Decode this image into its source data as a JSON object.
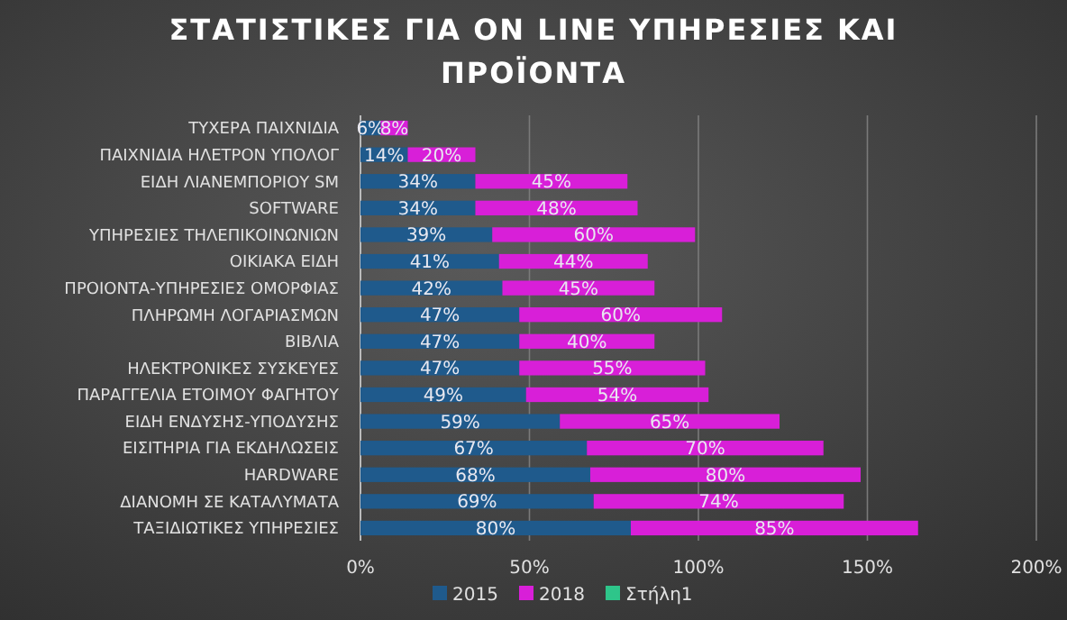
{
  "chart_data": {
    "type": "bar",
    "orientation": "horizontal",
    "stacked": true,
    "title": "ΣΤΑΤΙΣΤΙΚΕΣ ΓΙΑ ON LINE ΥΠΗΡΕΣΙΕΣ ΚΑΙ ΠΡΟΪΟΝΤΑ",
    "categories": [
      "ΤΥΧΕΡΑ ΠΑΙΧΝΙΔΙΑ",
      "ΠΑΙΧΝΙΔΙΑ ΗΛΕΤΡΟΝ ΥΠΟΛΟΓ",
      "ΕΙΔΗ ΛΙΑΝΕΜΠΟΡΙΟΥ SM",
      "SOFTWARE",
      "ΥΠΗΡΕΣΙΕΣ ΤΗΛΕΠΙΚΟΙΝΩΝΙΩΝ",
      "ΟΙΚΙΑΚΑ ΕΙΔΗ",
      "ΠΡΟΙΟΝΤΑ-ΥΠΗΡΕΣΙΕΣ ΟΜΟΡΦΙΑΣ",
      "ΠΛΗΡΩΜΗ ΛΟΓΑΡΙΑΣΜΩΝ",
      "ΒΙΒΛΙΑ",
      "ΗΛΕΚΤΡΟΝΙΚΕΣ ΣΥΣΚΕΥΕΣ",
      "ΠΑΡΑΓΓΕΛΙΑ ΕΤΟΙΜΟΥ ΦΑΓΗΤΟΥ",
      "ΕΙΔΗ ΕΝΔΥΣΗΣ-ΥΠΟΔΥΣΗΣ",
      "ΕΙΣΙΤΗΡΙΑ ΓΙΑ ΕΚΔΗΛΩΣΕΙΣ",
      "HARDWARE",
      "ΔΙΑΝΟΜΗ ΣΕ ΚΑΤΑΛΥΜΑΤΑ",
      "ΤΑΞΙΔΙΩΤΙΚΕΣ ΥΠΗΡΕΣΙΕΣ"
    ],
    "series": [
      {
        "name": "2015",
        "color": "#1f5a8c",
        "values": [
          6,
          14,
          34,
          34,
          39,
          41,
          42,
          47,
          47,
          47,
          49,
          59,
          67,
          68,
          69,
          80
        ],
        "value_labels": [
          "6%",
          "14%",
          "34%",
          "34%",
          "39%",
          "41%",
          "42%",
          "47%",
          "47%",
          "47%",
          "49%",
          "59%",
          "67%",
          "68%",
          "69%",
          "80%"
        ]
      },
      {
        "name": "2018",
        "color": "#d81fd8",
        "values": [
          8,
          20,
          45,
          48,
          60,
          44,
          45,
          60,
          40,
          55,
          54,
          65,
          70,
          80,
          74,
          85
        ],
        "value_labels": [
          "8%",
          "20%",
          "45%",
          "48%",
          "60%",
          "44%",
          "45%",
          "60%",
          "40%",
          "55%",
          "54%",
          "65%",
          "70%",
          "80%",
          "74%",
          "85%"
        ]
      },
      {
        "name": "Στήλη1",
        "color": "#2ec58a",
        "values": [
          null,
          null,
          null,
          null,
          null,
          null,
          null,
          null,
          null,
          null,
          null,
          null,
          null,
          null,
          null,
          null
        ]
      }
    ],
    "xlim": [
      0,
      200
    ],
    "xticks": [
      {
        "value": 0,
        "label": "0%"
      },
      {
        "value": 50,
        "label": "50%"
      },
      {
        "value": 100,
        "label": "100%"
      },
      {
        "value": 150,
        "label": "150%"
      },
      {
        "value": 200,
        "label": "200%"
      }
    ],
    "grid": "x",
    "legend": "bottom"
  }
}
